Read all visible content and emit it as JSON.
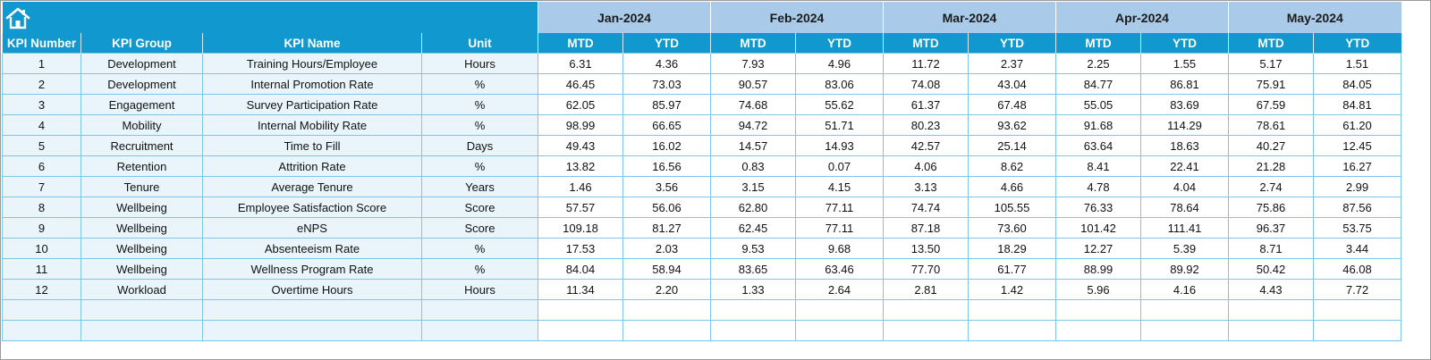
{
  "headers": {
    "kpi_number": "KPI Number",
    "kpi_group": "KPI Group",
    "kpi_name": "KPI Name",
    "unit": "Unit",
    "mtd": "MTD",
    "ytd": "YTD"
  },
  "months": [
    "Jan-2024",
    "Feb-2024",
    "Mar-2024",
    "Apr-2024",
    "May-2024"
  ],
  "rows": [
    {
      "num": "1",
      "group": "Development",
      "name": "Training Hours/Employee",
      "unit": "Hours",
      "vals": [
        "6.31",
        "4.36",
        "7.93",
        "4.96",
        "11.72",
        "2.37",
        "2.25",
        "1.55",
        "5.17",
        "1.51"
      ]
    },
    {
      "num": "2",
      "group": "Development",
      "name": "Internal Promotion Rate",
      "unit": "%",
      "vals": [
        "46.45",
        "73.03",
        "90.57",
        "83.06",
        "74.08",
        "43.04",
        "84.77",
        "86.81",
        "75.91",
        "84.05"
      ]
    },
    {
      "num": "3",
      "group": "Engagement",
      "name": "Survey Participation Rate",
      "unit": "%",
      "vals": [
        "62.05",
        "85.97",
        "74.68",
        "55.62",
        "61.37",
        "67.48",
        "55.05",
        "83.69",
        "67.59",
        "84.81"
      ]
    },
    {
      "num": "4",
      "group": "Mobility",
      "name": "Internal Mobility Rate",
      "unit": "%",
      "vals": [
        "98.99",
        "66.65",
        "94.72",
        "51.71",
        "80.23",
        "93.62",
        "91.68",
        "114.29",
        "78.61",
        "61.20"
      ]
    },
    {
      "num": "5",
      "group": "Recruitment",
      "name": "Time to Fill",
      "unit": "Days",
      "vals": [
        "49.43",
        "16.02",
        "14.57",
        "14.93",
        "42.57",
        "25.14",
        "63.64",
        "18.63",
        "40.27",
        "12.45"
      ]
    },
    {
      "num": "6",
      "group": "Retention",
      "name": "Attrition Rate",
      "unit": "%",
      "vals": [
        "13.82",
        "16.56",
        "0.83",
        "0.07",
        "4.06",
        "8.62",
        "8.41",
        "22.41",
        "21.28",
        "16.27"
      ]
    },
    {
      "num": "7",
      "group": "Tenure",
      "name": "Average Tenure",
      "unit": "Years",
      "vals": [
        "1.46",
        "3.56",
        "3.15",
        "4.15",
        "3.13",
        "4.66",
        "4.78",
        "4.04",
        "2.74",
        "2.99"
      ]
    },
    {
      "num": "8",
      "group": "Wellbeing",
      "name": "Employee Satisfaction Score",
      "unit": "Score",
      "vals": [
        "57.57",
        "56.06",
        "62.80",
        "77.11",
        "74.74",
        "105.55",
        "76.33",
        "78.64",
        "75.86",
        "87.56"
      ]
    },
    {
      "num": "9",
      "group": "Wellbeing",
      "name": "eNPS",
      "unit": "Score",
      "vals": [
        "109.18",
        "81.27",
        "62.45",
        "77.11",
        "87.18",
        "73.60",
        "101.42",
        "111.41",
        "96.37",
        "53.75"
      ]
    },
    {
      "num": "10",
      "group": "Wellbeing",
      "name": "Absenteeism Rate",
      "unit": "%",
      "vals": [
        "17.53",
        "2.03",
        "9.53",
        "9.68",
        "13.50",
        "18.29",
        "12.27",
        "5.39",
        "8.71",
        "3.44"
      ]
    },
    {
      "num": "11",
      "group": "Wellbeing",
      "name": "Wellness Program Rate",
      "unit": "%",
      "vals": [
        "84.04",
        "58.94",
        "83.65",
        "63.46",
        "77.70",
        "61.77",
        "88.99",
        "89.92",
        "50.42",
        "46.08"
      ]
    },
    {
      "num": "12",
      "group": "Workload",
      "name": "Overtime Hours",
      "unit": "Hours",
      "vals": [
        "11.34",
        "2.20",
        "1.33",
        "2.64",
        "2.81",
        "1.42",
        "5.96",
        "4.16",
        "4.43",
        "7.72"
      ]
    },
    {
      "num": "",
      "group": "",
      "name": "",
      "unit": "",
      "vals": [
        "",
        "",
        "",
        "",
        "",
        "",
        "",
        "",
        "",
        ""
      ]
    },
    {
      "num": "",
      "group": "",
      "name": "",
      "unit": "",
      "vals": [
        "",
        "",
        "",
        "",
        "",
        "",
        "",
        "",
        "",
        ""
      ]
    }
  ],
  "icons": {
    "home": "home-icon"
  },
  "colors": {
    "header_blue": "#1199cf",
    "month_header": "#a9cbe9",
    "left_cell_bg": "#e9f5fb",
    "grid_line": "#7fc6e6"
  }
}
